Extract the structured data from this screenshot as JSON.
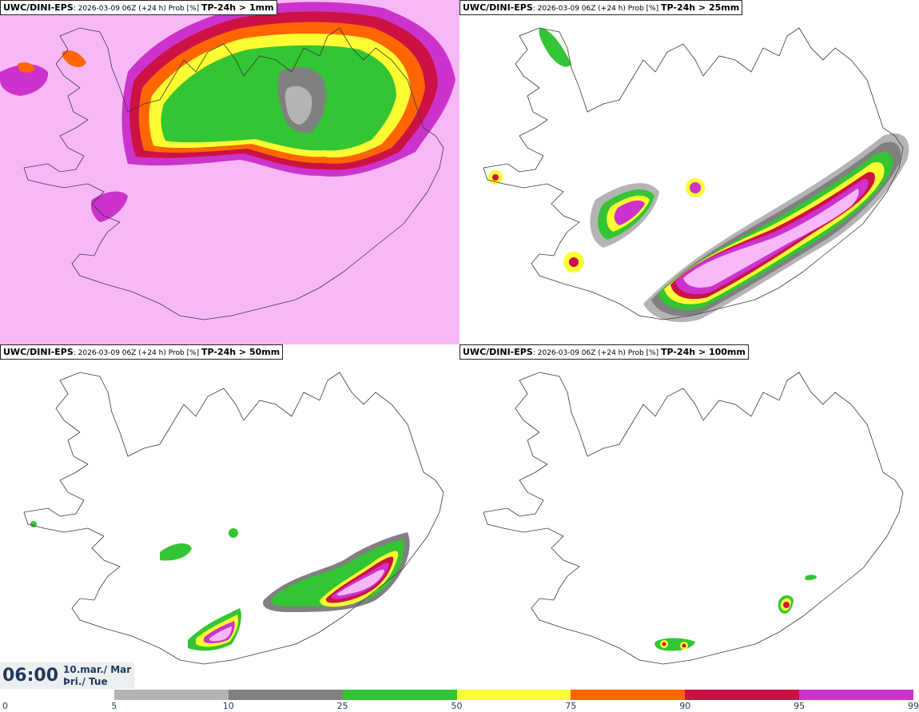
{
  "colors": {
    "prob_5": "#b4b4b4",
    "prob_10": "#808080",
    "prob_25": "#33c533",
    "prob_50": "#fdfd33",
    "prob_75": "#ff6600",
    "prob_90": "#cc1144",
    "prob_95": "#cc33cc",
    "prob_99": "#f8b8f8",
    "coast": "#3a3a3a"
  },
  "panels": [
    {
      "model": "UWC/DINI-EPS",
      "info": ": 2026-03-09 06Z (+24 h) Prob [%] ",
      "param": "TP-24h > 1mm"
    },
    {
      "model": "UWC/DINI-EPS",
      "info": ": 2026-03-09 06Z (+24 h) Prob [%] ",
      "param": "TP-24h > 25mm"
    },
    {
      "model": "UWC/DINI-EPS",
      "info": ": 2026-03-09 06Z (+24 h) Prob [%] ",
      "param": "TP-24h > 50mm"
    },
    {
      "model": "UWC/DINI-EPS",
      "info": ": 2026-03-09 06Z (+24 h) Prob [%] ",
      "param": "TP-24h > 100mm"
    }
  ],
  "valid_time": {
    "time": "06:00",
    "date_line1": "10.mar./ Mar",
    "date_line2": "Þri./ Tue"
  },
  "colorbar": {
    "ticks": [
      "0",
      "5",
      "10",
      "25",
      "50",
      "75",
      "90",
      "95",
      "99"
    ],
    "segments": [
      "prob_5",
      "prob_10",
      "prob_25",
      "prob_50",
      "prob_75",
      "prob_90",
      "prob_95"
    ]
  }
}
